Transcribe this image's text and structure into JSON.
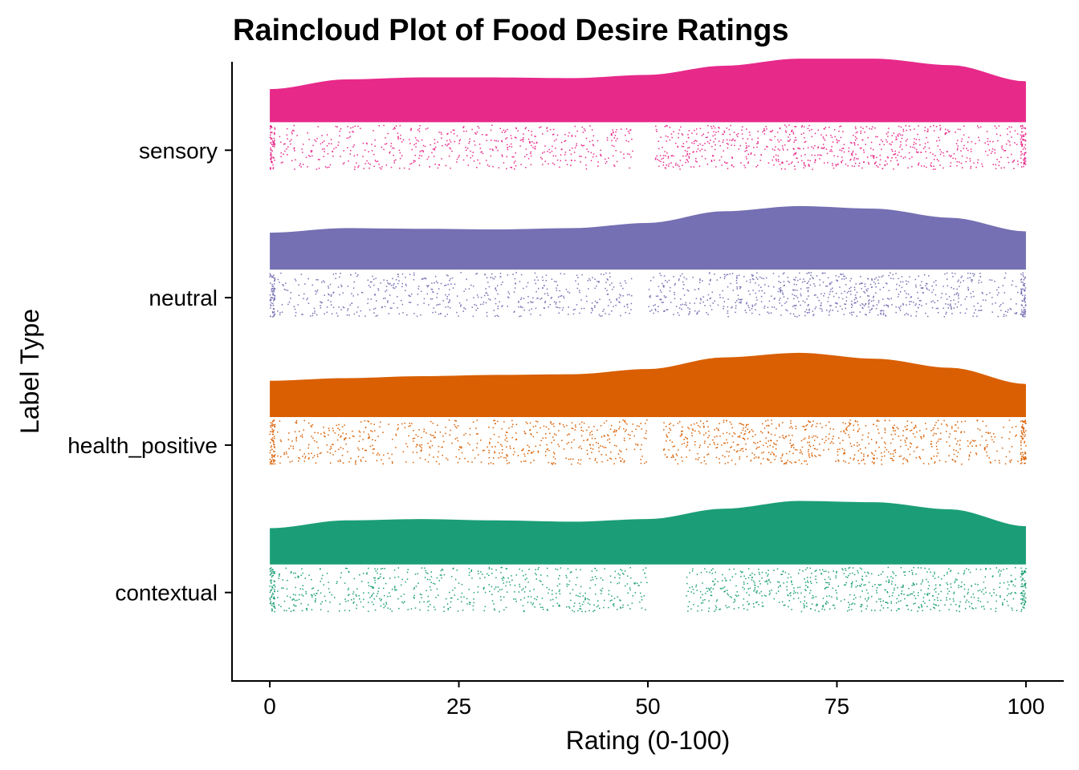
{
  "chart_data": {
    "type": "raincloud",
    "title": "Raincloud Plot of Food Desire Ratings",
    "xlabel": "Rating (0-100)",
    "ylabel": "Label Type",
    "xlim": [
      -5,
      105
    ],
    "x_ticks": [
      0,
      25,
      50,
      75,
      100
    ],
    "categories": [
      "contextual",
      "health_positive",
      "neutral",
      "sensory"
    ],
    "series": [
      {
        "name": "contextual",
        "color": "#1b9e77",
        "density": {
          "x": [
            0,
            10,
            20,
            30,
            40,
            50,
            60,
            70,
            80,
            90,
            100
          ],
          "y": [
            0.56,
            0.68,
            0.7,
            0.68,
            0.66,
            0.7,
            0.86,
            0.98,
            0.96,
            0.85,
            0.59
          ]
        },
        "raw_points": "~1500 jittered observations spanning 0–100, with clusters at 0 and 100 and a gap near 50–55"
      },
      {
        "name": "health_positive",
        "color": "#d95f02",
        "density": {
          "x": [
            0,
            10,
            20,
            30,
            40,
            50,
            60,
            70,
            80,
            90,
            100
          ],
          "y": [
            0.56,
            0.6,
            0.63,
            0.65,
            0.66,
            0.74,
            0.92,
            0.99,
            0.9,
            0.76,
            0.51
          ]
        },
        "raw_points": "~1500 jittered observations spanning 0–100, with clusters at 0 and 100 and a gap near 50–52"
      },
      {
        "name": "neutral",
        "color": "#7570b3",
        "density": {
          "x": [
            0,
            10,
            20,
            30,
            40,
            50,
            60,
            70,
            80,
            90,
            100
          ],
          "y": [
            0.57,
            0.64,
            0.63,
            0.62,
            0.64,
            0.72,
            0.9,
            0.98,
            0.94,
            0.8,
            0.59
          ]
        },
        "raw_points": "~1500 jittered observations spanning 0–100, with clusters at 0 and 100 and a gap near 48–50"
      },
      {
        "name": "sensory",
        "color": "#e7298a",
        "density": {
          "x": [
            0,
            10,
            20,
            30,
            40,
            50,
            60,
            70,
            80,
            90,
            100
          ],
          "y": [
            0.51,
            0.66,
            0.69,
            0.69,
            0.68,
            0.73,
            0.87,
            0.98,
            0.98,
            0.88,
            0.63
          ]
        },
        "raw_points": "~1500 jittered observations spanning 0–100, with clusters at 0 and 100 and a gap near 48–51"
      }
    ],
    "grid": false,
    "legend": "none"
  }
}
